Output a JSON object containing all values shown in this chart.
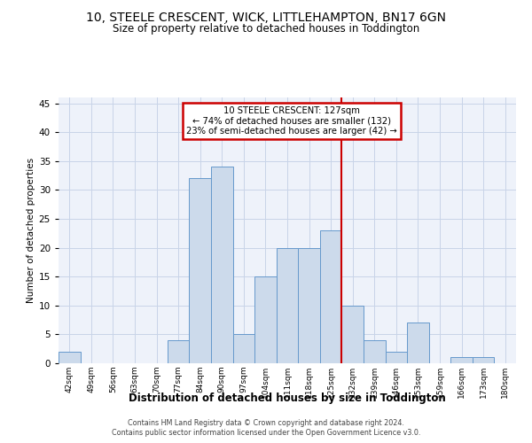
{
  "title1": "10, STEELE CRESCENT, WICK, LITTLEHAMPTON, BN17 6GN",
  "title2": "Size of property relative to detached houses in Toddington",
  "xlabel": "Distribution of detached houses by size in Toddington",
  "ylabel": "Number of detached properties",
  "bin_labels": [
    "42sqm",
    "49sqm",
    "56sqm",
    "63sqm",
    "70sqm",
    "77sqm",
    "84sqm",
    "90sqm",
    "97sqm",
    "104sqm",
    "111sqm",
    "118sqm",
    "125sqm",
    "132sqm",
    "139sqm",
    "146sqm",
    "153sqm",
    "159sqm",
    "166sqm",
    "173sqm",
    "180sqm"
  ],
  "bar_values": [
    2,
    0,
    0,
    0,
    0,
    4,
    32,
    34,
    5,
    15,
    20,
    20,
    23,
    10,
    4,
    2,
    7,
    0,
    1,
    1,
    0
  ],
  "bar_color": "#ccdaeb",
  "bar_edge_color": "#6699cc",
  "vline_color": "#cc0000",
  "annotation_line1": "10 STEELE CRESCENT: 127sqm",
  "annotation_line2": "← 74% of detached houses are smaller (132)",
  "annotation_line3": "23% of semi-detached houses are larger (42) →",
  "annotation_box_color": "#cc0000",
  "ylim": [
    0,
    46
  ],
  "yticks": [
    0,
    5,
    10,
    15,
    20,
    25,
    30,
    35,
    40,
    45
  ],
  "grid_color": "#c8d4e8",
  "bg_color": "#eef2fa",
  "footer1": "Contains HM Land Registry data © Crown copyright and database right 2024.",
  "footer2": "Contains public sector information licensed under the Open Government Licence v3.0."
}
